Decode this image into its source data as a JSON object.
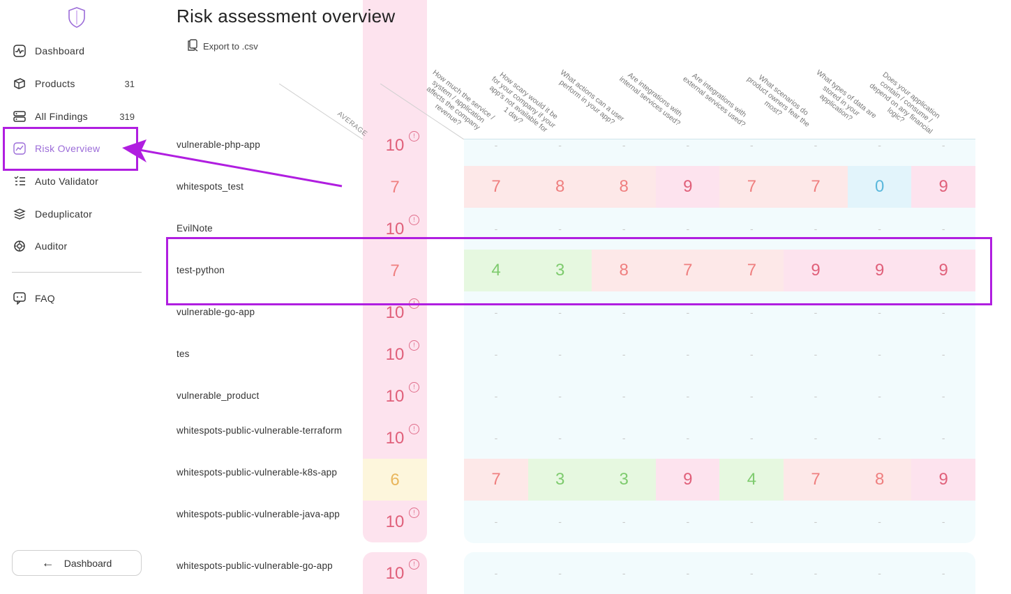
{
  "sidebar": {
    "items": [
      {
        "label": "Dashboard",
        "icon": "dashboard-icon",
        "count": ""
      },
      {
        "label": "Products",
        "icon": "products-icon",
        "count": "31"
      },
      {
        "label": "All Findings",
        "icon": "findings-icon",
        "count": "319"
      },
      {
        "label": "Risk Overview",
        "icon": "chart-icon",
        "count": ""
      },
      {
        "label": "Auto Validator",
        "icon": "list-icon",
        "count": ""
      },
      {
        "label": "Deduplicator",
        "icon": "layers-icon",
        "count": ""
      },
      {
        "label": "Auditor",
        "icon": "auditor-icon",
        "count": ""
      },
      {
        "label": "FAQ",
        "icon": "faq-icon",
        "count": ""
      }
    ],
    "back_button": "Dashboard"
  },
  "main": {
    "title": "Risk assessment overview",
    "export_label": "Export to .csv",
    "avg_header": "AVERAGE",
    "questions": [
      "How much the service / system / application affects the company revenue?",
      "How scary would it be for your company if your app's not available for 1 day?",
      "What actions can a user perform in your app?",
      "Are integrations with internal services used?",
      "Are integrations with external services used?",
      "What scenarios do product owners fear the most?",
      "What types of data are stored in your application?",
      "Does your application contain / consume / depend on any financial logic?"
    ],
    "rows": [
      {
        "name": "vulnerable-php-app",
        "avg": "10",
        "warn": true,
        "scores": [
          "-",
          "-",
          "-",
          "-",
          "-",
          "-",
          "-",
          "-"
        ]
      },
      {
        "name": "whitespots_test",
        "avg": "7",
        "warn": false,
        "scores": [
          "7",
          "8",
          "8",
          "9",
          "7",
          "7",
          "0",
          "9"
        ]
      },
      {
        "name": "EvilNote",
        "avg": "10",
        "warn": true,
        "scores": [
          "-",
          "-",
          "-",
          "-",
          "-",
          "-",
          "-",
          "-"
        ]
      },
      {
        "name": "test-python",
        "avg": "7",
        "warn": false,
        "scores": [
          "4",
          "3",
          "8",
          "7",
          "7",
          "9",
          "9",
          "9"
        ]
      },
      {
        "name": "vulnerable-go-app",
        "avg": "10",
        "warn": true,
        "scores": [
          "-",
          "-",
          "-",
          "-",
          "-",
          "-",
          "-",
          "-"
        ]
      },
      {
        "name": "tes",
        "avg": "10",
        "warn": true,
        "scores": [
          "-",
          "-",
          "-",
          "-",
          "-",
          "-",
          "-",
          "-"
        ]
      },
      {
        "name": "vulnerable_product",
        "avg": "10",
        "warn": true,
        "scores": [
          "-",
          "-",
          "-",
          "-",
          "-",
          "-",
          "-",
          "-"
        ]
      },
      {
        "name": "whitespots-public-vulnerable-terraform",
        "avg": "10",
        "warn": true,
        "scores": [
          "-",
          "-",
          "-",
          "-",
          "-",
          "-",
          "-",
          "-"
        ]
      },
      {
        "name": "whitespots-public-vulnerable-k8s-app",
        "avg": "6",
        "warn": false,
        "scores": [
          "7",
          "3",
          "3",
          "9",
          "4",
          "7",
          "8",
          "9"
        ]
      },
      {
        "name": "whitespots-public-vulnerable-java-app",
        "avg": "10",
        "warn": true,
        "scores": [
          "-",
          "-",
          "-",
          "-",
          "-",
          "-",
          "-",
          "-"
        ]
      },
      {
        "name": "whitespots-public-vulnerable-go-app",
        "avg": "10",
        "warn": true,
        "scores": [
          "-",
          "-",
          "-",
          "-",
          "-",
          "-",
          "-",
          "-"
        ]
      }
    ],
    "warn_glyph": "!"
  },
  "colors": {
    "accent": "#9b6bd8",
    "highlight": "#b01ee0",
    "high_bg": "#fde3ee",
    "high_fg": "#e0607a",
    "mid_bg": "#fde8e8",
    "mid_fg": "#ef7f7f",
    "low_bg": "#e6f8e0",
    "low_fg": "#7ecb6e",
    "zero_bg": "#e2f4fb",
    "zero_fg": "#5ab8dc",
    "avg_warn_bg": "#fdf6dc",
    "avg_warn_fg": "#e9b65c"
  }
}
